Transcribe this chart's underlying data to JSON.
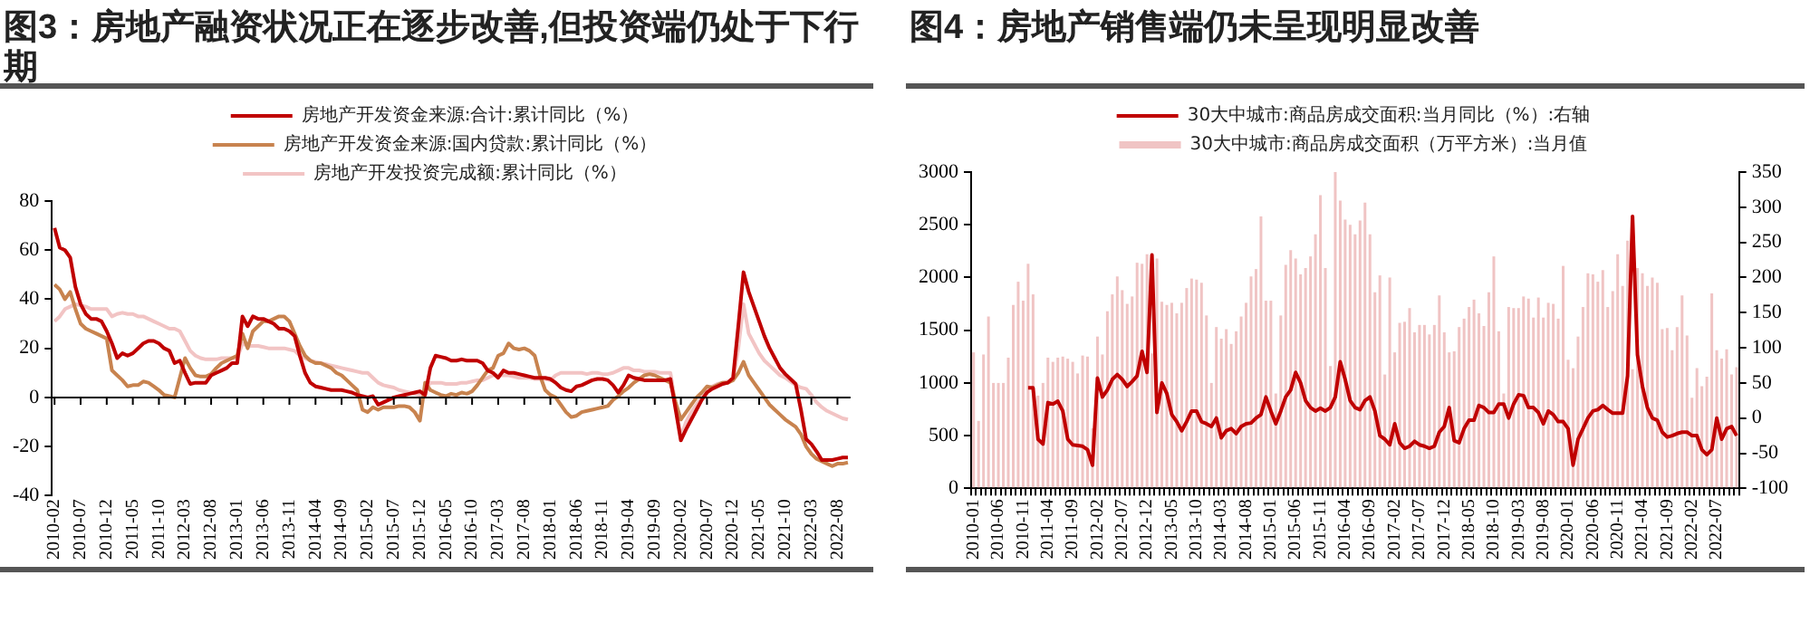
{
  "chart_data": [
    {
      "type": "line",
      "title": "图3：房地产融资状况正在逐步改善,但投资端仍处于下行期",
      "categories": [
        "2010-02",
        null,
        null,
        null,
        null,
        "2010-07",
        null,
        null,
        null,
        null,
        "2010-12",
        null,
        null,
        null,
        null,
        "2011-05",
        null,
        null,
        null,
        null,
        "2011-10",
        null,
        null,
        null,
        null,
        "2012-03",
        null,
        null,
        null,
        null,
        "2012-08",
        null,
        null,
        null,
        null,
        "2013-01",
        null,
        null,
        null,
        null,
        "2013-06",
        null,
        null,
        null,
        null,
        "2013-11",
        null,
        null,
        null,
        null,
        "2014-04",
        null,
        null,
        null,
        null,
        "2014-09",
        null,
        null,
        null,
        null,
        "2015-02",
        null,
        null,
        null,
        null,
        "2015-07",
        null,
        null,
        null,
        null,
        "2015-12",
        null,
        null,
        null,
        null,
        "2016-05",
        null,
        null,
        null,
        null,
        "2016-10",
        null,
        null,
        null,
        null,
        "2017-03",
        null,
        null,
        null,
        null,
        "2017-08",
        null,
        null,
        null,
        null,
        "2018-01",
        null,
        null,
        null,
        null,
        "2018-06",
        null,
        null,
        null,
        null,
        "2018-11",
        null,
        null,
        null,
        null,
        "2019-04",
        null,
        null,
        null,
        null,
        "2019-09",
        null,
        null,
        null,
        null,
        "2020-02",
        null,
        null,
        null,
        null,
        "2020-07",
        null,
        null,
        null,
        null,
        "2020-12",
        null,
        null,
        null,
        null,
        "2021-05",
        null,
        null,
        null,
        null,
        "2021-10",
        null,
        null,
        null,
        null,
        "2022-03",
        null,
        null,
        null,
        null,
        "2022-08",
        null,
        null
      ],
      "series": [
        {
          "name": "房地产开发资金来源:合计:累计同比（%）",
          "color": "#c00000",
          "values": [
            69,
            61,
            60,
            57,
            45,
            38,
            34,
            32,
            32,
            31,
            27,
            22,
            16,
            18,
            17,
            18,
            20,
            22,
            23,
            23,
            22,
            20,
            19,
            14,
            15,
            10,
            5.5,
            6,
            6,
            6,
            9,
            10,
            11,
            12,
            14,
            14,
            33,
            29,
            33,
            32,
            32,
            31,
            30,
            28,
            28,
            27,
            25,
            17,
            10,
            6,
            4.5,
            4,
            3.5,
            3,
            3,
            3,
            2.5,
            2,
            1,
            0.5,
            0,
            0.5,
            -3,
            -2,
            -1,
            0,
            0.5,
            1,
            1.5,
            2,
            2.5,
            1,
            12,
            17,
            16.5,
            16,
            15,
            15,
            15.5,
            15,
            15,
            15,
            14,
            11,
            10,
            8,
            11,
            10,
            10,
            9.5,
            9,
            8.5,
            8,
            8,
            8,
            7.5,
            6,
            4,
            3,
            2.5,
            4.5,
            5,
            6,
            7,
            7.5,
            7.5,
            7,
            5,
            2,
            5,
            9,
            8,
            7.5,
            7,
            7,
            7,
            7,
            7,
            7.5,
            -5,
            -17.5,
            -13,
            -9,
            -5,
            -1,
            2,
            3.5,
            4.5,
            5.5,
            6,
            8,
            29,
            51,
            43,
            37,
            31,
            25,
            20,
            16,
            12,
            9.5,
            7.5,
            5.5,
            -5,
            -17,
            -19,
            -22,
            -25.5,
            -25.5,
            -25.5,
            -25,
            -24.5,
            -24.5
          ]
        },
        {
          "name": "房地产开发资金来源:国内贷款:累计同比（%）",
          "color": "#c8834f",
          "values": [
            46,
            44,
            40,
            43,
            36,
            30,
            28,
            27,
            26,
            25,
            24,
            11,
            9,
            7,
            4.5,
            5,
            5,
            6.5,
            6,
            4.5,
            3,
            1,
            0.5,
            0,
            8,
            16,
            12,
            9,
            8.5,
            8.5,
            9.5,
            12,
            14,
            15,
            16,
            17,
            26,
            20,
            27,
            29,
            31,
            31,
            32,
            33,
            33,
            31,
            26,
            21,
            17,
            15,
            14,
            14,
            13,
            12,
            10,
            9,
            7,
            5,
            3,
            -5,
            -6,
            -4,
            -5,
            -4,
            -4,
            -4,
            -3.5,
            -3.5,
            -4,
            -6,
            -9.5,
            6,
            3,
            2,
            1,
            0.5,
            1.5,
            1,
            2,
            1.5,
            2.5,
            5,
            8,
            11,
            12,
            17,
            18,
            22,
            20,
            19.5,
            20,
            19,
            17,
            9,
            3,
            1,
            0,
            -3,
            -6,
            -8,
            -7.5,
            -6,
            -5.5,
            -5,
            -4.5,
            -4,
            -3.5,
            -1,
            0.5,
            2.5,
            4,
            6,
            7.5,
            9,
            9.5,
            9,
            8,
            7,
            6,
            -2,
            -9,
            -6,
            -3,
            0,
            2,
            4.5,
            4,
            5,
            6,
            6,
            7,
            10,
            14.5,
            9,
            6,
            3,
            0,
            -3,
            -5,
            -7,
            -9,
            -10.5,
            -12,
            -15,
            -20,
            -23,
            -25,
            -26,
            -27,
            -28,
            -27,
            -27,
            -26.5
          ]
        },
        {
          "name": "房地产开发投资完成额:累计同比（%）",
          "color": "#f2c4c4",
          "values": [
            31,
            33,
            36,
            37,
            38,
            37.5,
            37,
            36,
            36,
            36,
            36,
            33,
            34,
            34.5,
            34,
            34,
            33,
            33,
            32,
            31,
            30,
            29,
            28,
            28,
            27,
            23,
            19,
            17,
            16,
            15.5,
            15.5,
            15.5,
            16,
            16,
            16,
            16,
            22,
            21,
            21,
            21,
            20.5,
            20,
            20,
            20,
            20,
            19.5,
            19,
            17,
            16,
            15,
            14.5,
            14,
            13.5,
            13,
            12.5,
            12,
            11.5,
            11,
            10.5,
            10,
            10,
            8,
            6,
            5,
            4.5,
            4,
            3,
            2.5,
            2,
            1.5,
            1,
            3,
            6,
            6,
            6,
            5.5,
            5.5,
            5.5,
            6,
            6,
            6.5,
            7,
            7,
            8,
            9,
            9,
            9,
            9,
            8.5,
            8,
            8,
            8,
            7.5,
            7.5,
            7.5,
            7,
            9,
            10,
            10,
            10,
            10,
            10,
            9.5,
            10,
            10,
            9.5,
            9.5,
            10,
            11,
            12,
            12,
            11,
            11,
            10.5,
            10.5,
            10.5,
            10,
            10,
            10,
            -3,
            -16,
            -10,
            -6,
            -3,
            0,
            3,
            4.5,
            5.5,
            6,
            6.5,
            7,
            20,
            38,
            26,
            22,
            18,
            15,
            13,
            11,
            9,
            8,
            6.5,
            5,
            4,
            3.5,
            1,
            -2,
            -4,
            -5.5,
            -6.5,
            -7.5,
            -8.5,
            -9
          ]
        }
      ],
      "ylim": [
        -40,
        80
      ],
      "yticks": [
        -40,
        -20,
        0,
        20,
        40,
        60,
        80
      ],
      "grid": false,
      "legend": "top",
      "ref_lines": [
        {
          "axis": "y",
          "value": 0,
          "color": "#000000"
        }
      ]
    },
    {
      "type": "bar",
      "title": "图4：房地产销售端仍未呈现明显改善",
      "categories": [
        "2010-01",
        null,
        null,
        null,
        null,
        "2010-06",
        null,
        null,
        null,
        null,
        "2010-11",
        null,
        null,
        null,
        null,
        "2011-04",
        null,
        null,
        null,
        null,
        "2011-09",
        null,
        null,
        null,
        null,
        "2012-02",
        null,
        null,
        null,
        null,
        "2012-07",
        null,
        null,
        null,
        null,
        "2012-12",
        null,
        null,
        null,
        null,
        "2013-05",
        null,
        null,
        null,
        null,
        "2013-10",
        null,
        null,
        null,
        null,
        "2014-03",
        null,
        null,
        null,
        null,
        "2014-08",
        null,
        null,
        null,
        null,
        "2015-01",
        null,
        null,
        null,
        null,
        "2015-06",
        null,
        null,
        null,
        null,
        "2015-11",
        null,
        null,
        null,
        null,
        "2016-04",
        null,
        null,
        null,
        null,
        "2016-09",
        null,
        null,
        null,
        null,
        "2017-02",
        null,
        null,
        null,
        null,
        "2017-07",
        null,
        null,
        null,
        null,
        "2017-12",
        null,
        null,
        null,
        null,
        "2018-05",
        null,
        null,
        null,
        null,
        "2018-10",
        null,
        null,
        null,
        null,
        "2019-03",
        null,
        null,
        null,
        null,
        "2019-08",
        null,
        null,
        null,
        null,
        "2020-01",
        null,
        null,
        null,
        null,
        "2020-06",
        null,
        null,
        null,
        null,
        "2020-11",
        null,
        null,
        null,
        null,
        "2021-04",
        null,
        null,
        null,
        null,
        "2021-09",
        null,
        null,
        null,
        null,
        "2022-02",
        null,
        null,
        null,
        null,
        "2022-07",
        null,
        null,
        null,
        null
      ],
      "series": [
        {
          "name": "30大中城市:商品房成交面积（万平方米）:当月值",
          "color": "#f0c4c4",
          "type": "bar",
          "values": [
            1290,
            640,
            1270,
            1630,
            1000,
            1000,
            1000,
            1240,
            1740,
            1960,
            1780,
            2130,
            1840,
            880,
            1000,
            1240,
            1200,
            1240,
            1250,
            1230,
            1200,
            1090,
            1260,
            1250,
            570,
            1440,
            1270,
            1680,
            1840,
            2010,
            1880,
            1750,
            1820,
            2140,
            2130,
            2220,
            1280,
            2180,
            1770,
            1740,
            1760,
            1660,
            1760,
            1900,
            1990,
            1980,
            1950,
            1640,
            1000,
            1530,
            1420,
            1510,
            1370,
            1490,
            1630,
            1760,
            2010,
            2080,
            2580,
            1780,
            1780,
            900,
            1640,
            2120,
            2260,
            2180,
            2030,
            2090,
            2200,
            2410,
            2780,
            2090,
            1160,
            3000,
            2730,
            2550,
            2500,
            2410,
            2540,
            2710,
            2410,
            1860,
            2020,
            1080,
            2000,
            1290,
            1570,
            1580,
            1710,
            1480,
            1550,
            1550,
            1460,
            1550,
            1830,
            1480,
            1290,
            1300,
            1530,
            1610,
            1720,
            1790,
            1660,
            1540,
            1860,
            2200,
            1490,
            900,
            1720,
            1710,
            1710,
            1820,
            1800,
            1620,
            1810,
            1620,
            1760,
            1750,
            1610,
            2110,
            1220,
            1140,
            1440,
            1720,
            2040,
            2030,
            1960,
            2070,
            1720,
            1870,
            2220,
            1920,
            2350,
            1130,
            2090,
            2040,
            1920,
            2000,
            1950,
            1510,
            1520,
            1310,
            1530,
            1830,
            1450,
            860,
            1140,
            970,
            1060,
            1850,
            1310,
            1230,
            1320,
            1080,
            1150
          ]
        },
        {
          "name": "30大中城市:商品房成交面积:当月同比（%）:右轴",
          "color": "#c00000",
          "type": "line",
          "axis": "y2",
          "values": [
            null,
            null,
            null,
            null,
            null,
            null,
            null,
            null,
            null,
            null,
            null,
            43,
            43,
            -30,
            -37,
            22,
            20,
            24,
            10,
            -30,
            -38,
            -39,
            -40,
            -45,
            -67,
            57,
            30,
            40,
            55,
            62,
            55,
            45,
            52,
            60,
            95,
            65,
            232,
            8,
            50,
            35,
            5,
            -5,
            -18,
            -5,
            10,
            10,
            -5,
            -8,
            -12,
            0,
            -28,
            -18,
            -15,
            -22,
            -12,
            -8,
            -7,
            0,
            5,
            30,
            10,
            -8,
            10,
            30,
            40,
            65,
            50,
            25,
            15,
            10,
            14,
            10,
            15,
            30,
            80,
            55,
            25,
            15,
            12,
            25,
            30,
            10,
            -25,
            -30,
            -38,
            -8,
            -35,
            -43,
            -40,
            -33,
            -38,
            -40,
            -43,
            -40,
            -20,
            -12,
            15,
            -32,
            -35,
            -15,
            -3,
            -3,
            18,
            15,
            8,
            8,
            20,
            20,
            0,
            20,
            33,
            32,
            15,
            15,
            8,
            -8,
            10,
            5,
            -5,
            -5,
            -15,
            -67,
            -30,
            -15,
            0,
            10,
            12,
            18,
            12,
            7,
            7,
            7,
            60,
            287,
            90,
            45,
            15,
            0,
            -3,
            -20,
            -27,
            -25,
            -22,
            -20,
            -20,
            -25,
            -25,
            -45,
            -52,
            -45,
            0,
            -30,
            -15,
            -12,
            -25
          ]
        }
      ],
      "ylim": [
        0,
        3000
      ],
      "yticks": [
        0,
        500,
        1000,
        1500,
        2000,
        2500,
        3000
      ],
      "y2lim": [
        -100,
        350
      ],
      "y2ticks": [
        -100,
        -50,
        0,
        50,
        100,
        150,
        200,
        250,
        300,
        350
      ],
      "grid": false,
      "legend": "top"
    }
  ]
}
